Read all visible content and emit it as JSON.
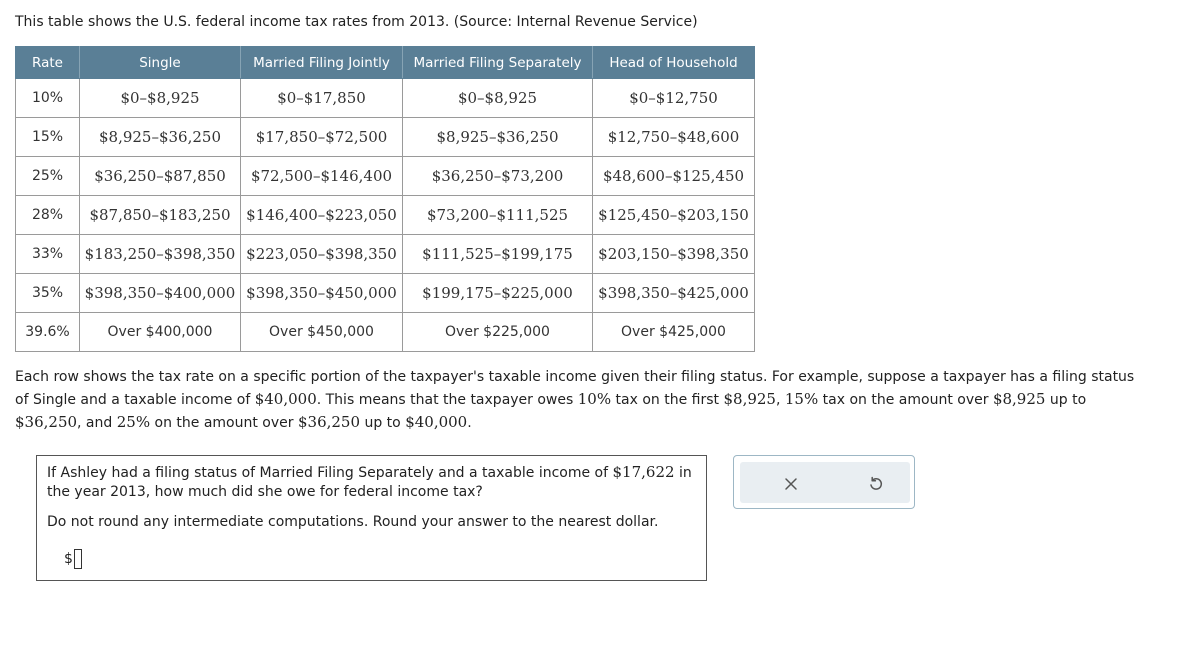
{
  "intro": "This table shows the U.S. federal income tax rates from 2013. (Source: Internal Revenue Service)",
  "table": {
    "headers": [
      "Rate",
      "Single",
      "Married Filing Jointly",
      "Married Filing Separately",
      "Head of Household"
    ],
    "rows": [
      [
        "10%",
        "$0–$8,925",
        "$0–$17,850",
        "$0–$8,925",
        "$0–$12,750"
      ],
      [
        "15%",
        "$8,925–$36,250",
        "$17,850–$72,500",
        "$8,925–$36,250",
        "$12,750–$48,600"
      ],
      [
        "25%",
        "$36,250–$87,850",
        "$72,500–$146,400",
        "$36,250–$73,200",
        "$48,600–$125,450"
      ],
      [
        "28%",
        "$87,850–$183,250",
        "$146,400–$223,050",
        "$73,200–$111,525",
        "$125,450–$203,150"
      ],
      [
        "33%",
        "$183,250–$398,350",
        "$223,050–$398,350",
        "$111,525–$199,175",
        "$203,150–$398,350"
      ],
      [
        "35%",
        "$398,350–$400,000",
        "$398,350–$450,000",
        "$199,175–$225,000",
        "$398,350–$425,000"
      ],
      [
        "39.6%",
        "Over $400,000",
        "Over $450,000",
        "Over $225,000",
        "Over $425,000"
      ]
    ]
  },
  "explanation": {
    "part1": "Each row shows the tax rate on a specific portion of the taxpayer's taxable income given their filing status. For example, suppose a taxpayer has a filing status of Single and a taxable income of ",
    "income": "$40,000",
    "part2": ". This means that the taxpayer owes ",
    "rate1": "10%",
    "part3": " tax on the first ",
    "amt1": "$8,925",
    "part4": ", ",
    "rate2": "15%",
    "part5": " tax on the amount over ",
    "amt2": "$8,925",
    "part6": " up to ",
    "amt3": "$36,250",
    "part7": ", and ",
    "rate3": "25%",
    "part8": " on the amount over ",
    "amt4": "$36,250",
    "part9": " up to ",
    "amt5": "$40,000",
    "part10": "."
  },
  "question": {
    "part1": "If Ashley had a filing status of Married Filing Separately and a taxable income of ",
    "income": "$17,622",
    "part2": " in the year 2013, how much did she owe for federal income tax?",
    "round_note": "Do not round any intermediate computations. Round your answer to the nearest dollar.",
    "currency": "$",
    "answer_value": ""
  },
  "buttons": {
    "clear_icon": "x-icon",
    "undo_icon": "undo-icon"
  }
}
